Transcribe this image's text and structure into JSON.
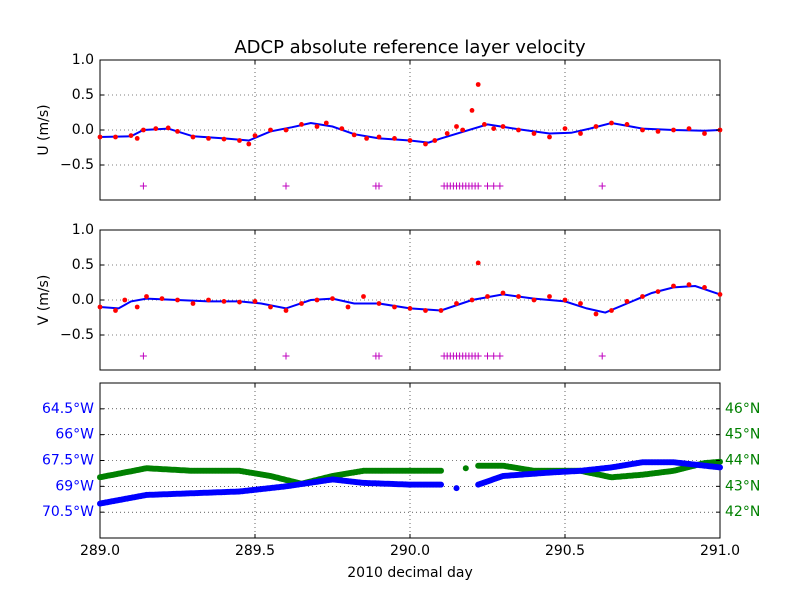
{
  "chart_data": {
    "title": "ADCP absolute reference layer velocity",
    "xlabel": "2010 decimal day",
    "xlim": [
      289.0,
      291.0
    ],
    "xticks": [
      "289.0",
      "289.5",
      "290.0",
      "290.5",
      "291.0"
    ],
    "colors": {
      "raw_points": "#ff0000",
      "smoothed_line": "#0000ff",
      "flag_markers": "#bf00bf",
      "longitude": "#0000ff",
      "latitude": "#008000"
    },
    "panels": [
      {
        "type": "scatter",
        "ylabel": "U (m/s)",
        "ylim": [
          -1.0,
          1.0
        ],
        "yticks": [
          "1.0",
          "0.5",
          "0.0",
          "−0.5"
        ],
        "grid": true,
        "series_points": [
          [
            289.0,
            -0.1
          ],
          [
            289.05,
            -0.1
          ],
          [
            289.1,
            -0.08
          ],
          [
            289.12,
            -0.12
          ],
          [
            289.14,
            0.0
          ],
          [
            289.18,
            0.02
          ],
          [
            289.22,
            0.03
          ],
          [
            289.25,
            -0.02
          ],
          [
            289.3,
            -0.1
          ],
          [
            289.35,
            -0.12
          ],
          [
            289.4,
            -0.13
          ],
          [
            289.45,
            -0.15
          ],
          [
            289.48,
            -0.2
          ],
          [
            289.5,
            -0.08
          ],
          [
            289.55,
            0.0
          ],
          [
            289.6,
            0.0
          ],
          [
            289.65,
            0.08
          ],
          [
            289.7,
            0.05
          ],
          [
            289.73,
            0.1
          ],
          [
            289.78,
            0.02
          ],
          [
            289.82,
            -0.07
          ],
          [
            289.86,
            -0.12
          ],
          [
            289.9,
            -0.1
          ],
          [
            289.95,
            -0.12
          ],
          [
            290.0,
            -0.15
          ],
          [
            290.05,
            -0.2
          ],
          [
            290.08,
            -0.15
          ],
          [
            290.12,
            -0.05
          ],
          [
            290.15,
            0.05
          ],
          [
            290.17,
            0.0
          ],
          [
            290.2,
            0.28
          ],
          [
            290.22,
            0.65
          ],
          [
            290.24,
            0.08
          ],
          [
            290.27,
            0.02
          ],
          [
            290.3,
            0.05
          ],
          [
            290.35,
            0.0
          ],
          [
            290.4,
            -0.05
          ],
          [
            290.45,
            -0.1
          ],
          [
            290.5,
            0.02
          ],
          [
            290.55,
            -0.05
          ],
          [
            290.6,
            0.05
          ],
          [
            290.65,
            0.1
          ],
          [
            290.7,
            0.08
          ],
          [
            290.75,
            0.0
          ],
          [
            290.8,
            -0.02
          ],
          [
            290.85,
            0.0
          ],
          [
            290.9,
            0.02
          ],
          [
            290.95,
            -0.05
          ],
          [
            291.0,
            0.0
          ]
        ],
        "series_smoothed": [
          [
            289.0,
            -0.1
          ],
          [
            289.1,
            -0.09
          ],
          [
            289.14,
            0.0
          ],
          [
            289.22,
            0.02
          ],
          [
            289.3,
            -0.09
          ],
          [
            289.4,
            -0.12
          ],
          [
            289.48,
            -0.15
          ],
          [
            289.55,
            -0.02
          ],
          [
            289.62,
            0.04
          ],
          [
            289.68,
            0.1
          ],
          [
            289.75,
            0.05
          ],
          [
            289.82,
            -0.06
          ],
          [
            289.9,
            -0.12
          ],
          [
            290.0,
            -0.15
          ],
          [
            290.06,
            -0.18
          ],
          [
            290.1,
            -0.12
          ],
          [
            290.25,
            0.08
          ],
          [
            290.35,
            0.01
          ],
          [
            290.45,
            -0.05
          ],
          [
            290.52,
            -0.04
          ],
          [
            290.58,
            0.02
          ],
          [
            290.65,
            0.1
          ],
          [
            290.75,
            0.02
          ],
          [
            290.85,
            0.0
          ],
          [
            290.95,
            -0.01
          ],
          [
            291.0,
            0.0
          ]
        ],
        "flag_x": [
          289.14,
          289.6,
          289.89,
          289.9,
          290.11,
          290.12,
          290.13,
          290.14,
          290.15,
          290.16,
          290.17,
          290.18,
          290.19,
          290.2,
          290.21,
          290.22,
          290.25,
          290.27,
          290.29,
          290.62
        ],
        "flag_y": -0.8
      },
      {
        "type": "scatter",
        "ylabel": "V (m/s)",
        "ylim": [
          -1.0,
          1.0
        ],
        "yticks": [
          "1.0",
          "0.5",
          "0.0",
          "−0.5"
        ],
        "grid": true,
        "series_points": [
          [
            289.0,
            -0.1
          ],
          [
            289.05,
            -0.15
          ],
          [
            289.08,
            0.0
          ],
          [
            289.12,
            -0.1
          ],
          [
            289.15,
            0.05
          ],
          [
            289.2,
            0.02
          ],
          [
            289.25,
            0.0
          ],
          [
            289.3,
            -0.05
          ],
          [
            289.35,
            0.0
          ],
          [
            289.4,
            -0.02
          ],
          [
            289.45,
            -0.03
          ],
          [
            289.5,
            -0.02
          ],
          [
            289.55,
            -0.1
          ],
          [
            289.6,
            -0.15
          ],
          [
            289.65,
            -0.05
          ],
          [
            289.7,
            0.0
          ],
          [
            289.75,
            0.02
          ],
          [
            289.8,
            -0.1
          ],
          [
            289.85,
            0.05
          ],
          [
            289.9,
            -0.05
          ],
          [
            289.95,
            -0.1
          ],
          [
            290.0,
            -0.12
          ],
          [
            290.05,
            -0.15
          ],
          [
            290.1,
            -0.15
          ],
          [
            290.15,
            -0.05
          ],
          [
            290.2,
            0.0
          ],
          [
            290.22,
            0.53
          ],
          [
            290.25,
            0.05
          ],
          [
            290.3,
            0.1
          ],
          [
            290.35,
            0.05
          ],
          [
            290.4,
            0.0
          ],
          [
            290.45,
            0.05
          ],
          [
            290.5,
            0.0
          ],
          [
            290.55,
            -0.05
          ],
          [
            290.6,
            -0.2
          ],
          [
            290.65,
            -0.15
          ],
          [
            290.7,
            -0.02
          ],
          [
            290.75,
            0.05
          ],
          [
            290.8,
            0.12
          ],
          [
            290.85,
            0.2
          ],
          [
            290.9,
            0.22
          ],
          [
            290.95,
            0.18
          ],
          [
            291.0,
            0.08
          ]
        ],
        "series_smoothed": [
          [
            289.0,
            -0.1
          ],
          [
            289.06,
            -0.12
          ],
          [
            289.1,
            -0.02
          ],
          [
            289.15,
            0.02
          ],
          [
            289.25,
            0.0
          ],
          [
            289.35,
            -0.02
          ],
          [
            289.45,
            -0.02
          ],
          [
            289.52,
            -0.05
          ],
          [
            289.6,
            -0.12
          ],
          [
            289.68,
            0.0
          ],
          [
            289.75,
            0.02
          ],
          [
            289.82,
            -0.05
          ],
          [
            289.9,
            -0.05
          ],
          [
            290.0,
            -0.12
          ],
          [
            290.1,
            -0.15
          ],
          [
            290.2,
            0.0
          ],
          [
            290.3,
            0.08
          ],
          [
            290.4,
            0.02
          ],
          [
            290.5,
            -0.02
          ],
          [
            290.57,
            -0.12
          ],
          [
            290.63,
            -0.18
          ],
          [
            290.7,
            -0.05
          ],
          [
            290.78,
            0.1
          ],
          [
            290.85,
            0.18
          ],
          [
            290.92,
            0.2
          ],
          [
            291.0,
            0.08
          ]
        ],
        "flag_x": [
          289.14,
          289.6,
          289.89,
          289.9,
          290.11,
          290.12,
          290.13,
          290.14,
          290.15,
          290.16,
          290.17,
          290.18,
          290.19,
          290.2,
          290.21,
          290.22,
          290.25,
          290.27,
          290.29,
          290.62
        ],
        "flag_y": -0.8
      },
      {
        "type": "scatter",
        "ylim": [
          -72.0,
          -63.0
        ],
        "ylim_right": [
          41.0,
          47.0
        ],
        "yticks_left": [
          "64.5°W",
          "66°W",
          "67.5°W",
          "69°W",
          "70.5°W"
        ],
        "ytick_values_left": [
          -64.5,
          -66,
          -67.5,
          -69,
          -70.5
        ],
        "yticks_right": [
          "46°N",
          "45°N",
          "44°N",
          "43°N",
          "42°N"
        ],
        "ytick_values_right": [
          46,
          45,
          44,
          43,
          42
        ],
        "grid": true,
        "longitude": [
          [
            289.0,
            -70.0
          ],
          [
            289.15,
            -69.5
          ],
          [
            289.3,
            -69.4
          ],
          [
            289.45,
            -69.3
          ],
          [
            289.6,
            -69.0
          ],
          [
            289.75,
            -68.6
          ],
          [
            289.85,
            -68.8
          ],
          [
            290.0,
            -68.9
          ],
          [
            290.1,
            -68.9
          ],
          [
            290.15,
            -69.1
          ],
          [
            290.22,
            -68.9
          ],
          [
            290.3,
            -68.4
          ],
          [
            290.45,
            -68.2
          ],
          [
            290.55,
            -68.1
          ],
          [
            290.65,
            -67.9
          ],
          [
            290.75,
            -67.6
          ],
          [
            290.85,
            -67.6
          ],
          [
            290.95,
            -67.8
          ],
          [
            291.0,
            -67.9
          ]
        ],
        "latitude": [
          [
            289.0,
            43.35
          ],
          [
            289.15,
            43.7
          ],
          [
            289.3,
            43.6
          ],
          [
            289.45,
            43.6
          ],
          [
            289.55,
            43.4
          ],
          [
            289.65,
            43.1
          ],
          [
            289.75,
            43.4
          ],
          [
            289.85,
            43.6
          ],
          [
            290.0,
            43.6
          ],
          [
            290.1,
            43.6
          ],
          [
            290.18,
            43.7
          ],
          [
            290.22,
            43.8
          ],
          [
            290.3,
            43.8
          ],
          [
            290.4,
            43.6
          ],
          [
            290.55,
            43.6
          ],
          [
            290.65,
            43.35
          ],
          [
            290.75,
            43.45
          ],
          [
            290.85,
            43.6
          ],
          [
            290.95,
            43.9
          ],
          [
            291.0,
            43.95
          ]
        ]
      }
    ]
  }
}
